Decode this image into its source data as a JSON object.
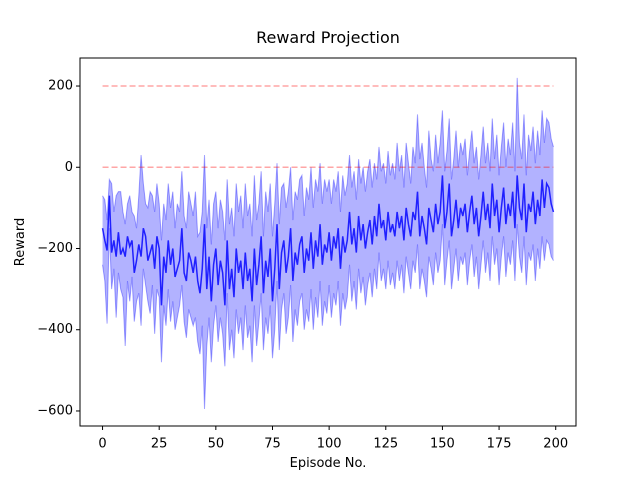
{
  "chart_data": {
    "type": "line",
    "title": "Reward Projection",
    "xlabel": "Episode No.",
    "ylabel": "Reward",
    "xlim": [
      -9.95,
      208.95
    ],
    "ylim": [
      -637,
      269
    ],
    "xticks": [
      0,
      25,
      50,
      75,
      100,
      125,
      150,
      175,
      200
    ],
    "yticks": [
      {
        "value": -600,
        "label": "−600"
      },
      {
        "value": -400,
        "label": "−400"
      },
      {
        "value": -200,
        "label": "−200"
      },
      0,
      200
    ],
    "hlines": {
      "values": [
        200,
        0
      ],
      "color": "#ff0000"
    },
    "x": [
      0,
      1,
      2,
      3,
      4,
      5,
      6,
      7,
      8,
      9,
      10,
      11,
      12,
      13,
      14,
      15,
      16,
      17,
      18,
      19,
      20,
      21,
      22,
      23,
      24,
      25,
      26,
      27,
      28,
      29,
      30,
      31,
      32,
      33,
      34,
      35,
      36,
      37,
      38,
      39,
      40,
      41,
      42,
      43,
      44,
      45,
      46,
      47,
      48,
      49,
      50,
      51,
      52,
      53,
      54,
      55,
      56,
      57,
      58,
      59,
      60,
      61,
      62,
      63,
      64,
      65,
      66,
      67,
      68,
      69,
      70,
      71,
      72,
      73,
      74,
      75,
      76,
      77,
      78,
      79,
      80,
      81,
      82,
      83,
      84,
      85,
      86,
      87,
      88,
      89,
      90,
      91,
      92,
      93,
      94,
      95,
      96,
      97,
      98,
      99,
      100,
      101,
      102,
      103,
      104,
      105,
      106,
      107,
      108,
      109,
      110,
      111,
      112,
      113,
      114,
      115,
      116,
      117,
      118,
      119,
      120,
      121,
      122,
      123,
      124,
      125,
      126,
      127,
      128,
      129,
      130,
      131,
      132,
      133,
      134,
      135,
      136,
      137,
      138,
      139,
      140,
      141,
      142,
      143,
      144,
      145,
      146,
      147,
      148,
      149,
      150,
      151,
      152,
      153,
      154,
      155,
      156,
      157,
      158,
      159,
      160,
      161,
      162,
      163,
      164,
      165,
      166,
      167,
      168,
      169,
      170,
      171,
      172,
      173,
      174,
      175,
      176,
      177,
      178,
      179,
      180,
      181,
      182,
      183,
      184,
      185,
      186,
      187,
      188,
      189,
      190,
      191,
      192,
      193,
      194,
      195,
      196,
      197,
      198,
      199
    ],
    "band": {
      "color": "#0000ff",
      "upper": [
        -70,
        -80,
        -130,
        -30,
        -40,
        -110,
        -70,
        -60,
        -60,
        -110,
        -140,
        -90,
        -70,
        -110,
        -120,
        -150,
        -70,
        30,
        -40,
        -90,
        -100,
        -60,
        -70,
        -110,
        -40,
        -90,
        -180,
        -90,
        -130,
        -40,
        -100,
        -60,
        -150,
        -90,
        -110,
        -10,
        -120,
        -150,
        -60,
        -90,
        -120,
        -60,
        -170,
        -160,
        -110,
        30,
        -150,
        -80,
        -190,
        -90,
        -60,
        -150,
        -80,
        -110,
        -180,
        -30,
        -140,
        -100,
        -170,
        -40,
        -110,
        -70,
        -150,
        -40,
        -120,
        -90,
        -170,
        -20,
        -130,
        -90,
        -10,
        -170,
        -60,
        -110,
        -40,
        -170,
        -90,
        10,
        -140,
        -50,
        -40,
        -100,
        -60,
        0,
        -130,
        -60,
        -80,
        -30,
        -20,
        -120,
        -50,
        -80,
        0,
        -100,
        -30,
        -60,
        10,
        -90,
        -30,
        -60,
        -30,
        -90,
        -30,
        -60,
        -10,
        -110,
        -20,
        -70,
        -40,
        30,
        -50,
        -10,
        -80,
        20,
        -40,
        0,
        -60,
        -10,
        20,
        -50,
        10,
        -30,
        50,
        -10,
        10,
        -40,
        40,
        -20,
        10,
        -30,
        60,
        -10,
        30,
        -50,
        60,
        10,
        -40,
        50,
        10,
        130,
        20,
        60,
        0,
        -50,
        90,
        20,
        -10,
        80,
        10,
        60,
        140,
        -10,
        40,
        120,
        -30,
        20,
        90,
        0,
        60,
        30,
        70,
        -20,
        40,
        90,
        10,
        50,
        -30,
        30,
        100,
        10,
        60,
        -10,
        120,
        20,
        80,
        -20,
        50,
        110,
        0,
        70,
        30,
        110,
        -10,
        220,
        60,
        20,
        130,
        -20,
        80,
        40,
        100,
        10,
        90,
        30,
        140,
        60,
        120,
        110,
        70,
        50
      ],
      "lower": [
        -240,
        -280,
        -385,
        -150,
        -300,
        -250,
        -370,
        -260,
        -300,
        -320,
        -440,
        -280,
        -330,
        -270,
        -380,
        -330,
        -310,
        -390,
        -250,
        -290,
        -330,
        -360,
        -290,
        -410,
        -300,
        -320,
        -480,
        -340,
        -390,
        -300,
        -380,
        -330,
        -400,
        -370,
        -340,
        -290,
        -380,
        -420,
        -350,
        -370,
        -390,
        -370,
        -430,
        -460,
        -390,
        -595,
        -440,
        -370,
        -480,
        -390,
        -340,
        -430,
        -370,
        -410,
        -490,
        -310,
        -450,
        -400,
        -470,
        -350,
        -410,
        -370,
        -450,
        -340,
        -420,
        -390,
        -480,
        -340,
        -440,
        -380,
        -310,
        -450,
        -370,
        -410,
        -340,
        -470,
        -400,
        -280,
        -450,
        -350,
        -310,
        -410,
        -370,
        -290,
        -430,
        -350,
        -390,
        -330,
        -310,
        -400,
        -350,
        -380,
        -300,
        -400,
        -320,
        -370,
        -280,
        -390,
        -330,
        -360,
        -290,
        -370,
        -310,
        -340,
        -280,
        -390,
        -310,
        -350,
        -320,
        -240,
        -330,
        -280,
        -350,
        -250,
        -310,
        -270,
        -340,
        -290,
        -260,
        -320,
        -250,
        -300,
        -210,
        -280,
        -250,
        -300,
        -230,
        -290,
        -260,
        -300,
        -230,
        -280,
        -240,
        -310,
        -220,
        -260,
        -300,
        -230,
        -260,
        -190,
        -300,
        -250,
        -280,
        -320,
        -220,
        -250,
        -290,
        -210,
        -260,
        -230,
        -140,
        -290,
        -230,
        -180,
        -300,
        -250,
        -200,
        -280,
        -220,
        -240,
        -210,
        -290,
        -230,
        -190,
        -270,
        -220,
        -300,
        -240,
        -180,
        -260,
        -210,
        -280,
        -170,
        -240,
        -200,
        -290,
        -220,
        -170,
        -270,
        -210,
        -240,
        -180,
        -280,
        -140,
        -220,
        -260,
        -170,
        -290,
        -210,
        -230,
        -190,
        -280,
        -200,
        -250,
        -170,
        -230,
        -180,
        -190,
        -220,
        -230
      ]
    },
    "series": [
      {
        "color": "#2020ff",
        "values": [
          -150,
          -180,
          -205,
          -70,
          -210,
          -180,
          -220,
          -160,
          -215,
          -200,
          -220,
          -170,
          -195,
          -180,
          -260,
          -230,
          -190,
          -220,
          -150,
          -170,
          -230,
          -210,
          -190,
          -250,
          -170,
          -200,
          -340,
          -220,
          -260,
          -180,
          -240,
          -200,
          -270,
          -250,
          -230,
          -150,
          -260,
          -280,
          -210,
          -230,
          -260,
          -220,
          -280,
          -310,
          -250,
          -140,
          -300,
          -220,
          -330,
          -240,
          -200,
          -290,
          -230,
          -260,
          -340,
          -180,
          -300,
          -250,
          -320,
          -200,
          -260,
          -230,
          -300,
          -210,
          -280,
          -250,
          -330,
          -200,
          -290,
          -240,
          -170,
          -310,
          -230,
          -270,
          -200,
          -330,
          -250,
          -140,
          -300,
          -210,
          -180,
          -260,
          -220,
          -150,
          -280,
          -210,
          -240,
          -190,
          -170,
          -260,
          -200,
          -230,
          -160,
          -250,
          -180,
          -220,
          -140,
          -240,
          -190,
          -210,
          -160,
          -230,
          -170,
          -200,
          -150,
          -250,
          -170,
          -210,
          -180,
          -110,
          -190,
          -150,
          -210,
          -120,
          -180,
          -140,
          -200,
          -160,
          -130,
          -190,
          -120,
          -170,
          -90,
          -150,
          -130,
          -180,
          -110,
          -160,
          -140,
          -170,
          -110,
          -150,
          -120,
          -180,
          -100,
          -140,
          -170,
          -110,
          -130,
          -60,
          -170,
          -120,
          -150,
          -190,
          -100,
          -130,
          -160,
          -90,
          -140,
          -110,
          -20,
          -150,
          -110,
          -40,
          -170,
          -130,
          -80,
          -150,
          -100,
          -120,
          -90,
          -160,
          -110,
          -70,
          -140,
          -100,
          -170,
          -120,
          -60,
          -130,
          -90,
          -150,
          -40,
          -120,
          -80,
          -160,
          -100,
          -50,
          -140,
          -90,
          -120,
          -60,
          -150,
          -20,
          -100,
          -130,
          -40,
          -160,
          -90,
          -110,
          -60,
          -140,
          -80,
          -120,
          -30,
          -100,
          -40,
          -50,
          -90,
          -110
        ]
      }
    ]
  }
}
